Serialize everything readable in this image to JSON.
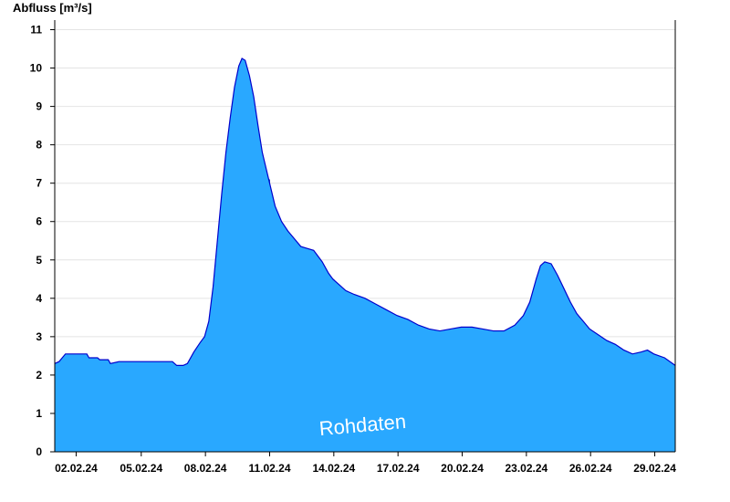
{
  "chart_data": {
    "type": "area",
    "title": "",
    "ylabel": "Abfluss [m³/s]",
    "xlabel": "",
    "watermark": "Rohdaten",
    "ylim": [
      0,
      11.25
    ],
    "xlim": [
      1,
      30
    ],
    "yticks": [
      0,
      1,
      2,
      3,
      4,
      5,
      6,
      7,
      8,
      9,
      10,
      11
    ],
    "xticks": [
      {
        "x": 2,
        "label": "02.02.24"
      },
      {
        "x": 5,
        "label": "05.02.24"
      },
      {
        "x": 8,
        "label": "08.02.24"
      },
      {
        "x": 11,
        "label": "11.02.24"
      },
      {
        "x": 14,
        "label": "14.02.24"
      },
      {
        "x": 17,
        "label": "17.02.24"
      },
      {
        "x": 20,
        "label": "20.02.24"
      },
      {
        "x": 23,
        "label": "23.02.24"
      },
      {
        "x": 26,
        "label": "26.02.24"
      },
      {
        "x": 29,
        "label": "29.02.24"
      }
    ],
    "grid": true,
    "colors": {
      "fill": "#29a8ff",
      "line": "#0000cc",
      "grid": "#e4e4e4",
      "date_line": "#1b5fa8"
    },
    "series": [
      {
        "x": [
          1.0,
          1.2,
          1.35,
          1.5,
          2.0,
          2.5,
          2.6,
          3.0,
          3.1,
          3.5,
          3.6,
          4.0,
          4.5,
          4.7,
          5.0,
          5.5,
          6.0,
          6.5,
          6.7,
          7.0,
          7.2,
          7.5,
          7.8,
          8.0,
          8.2,
          8.4,
          8.6,
          8.8,
          9.0,
          9.2,
          9.4,
          9.6,
          9.75,
          9.9,
          10.0,
          10.1,
          10.3,
          10.5,
          10.7,
          11.0,
          11.3,
          11.6,
          11.9,
          12.2,
          12.5,
          12.8,
          13.1,
          13.5,
          13.8,
          14.0,
          14.3,
          14.6,
          15.0,
          15.5,
          16.0,
          16.5,
          17.0,
          17.5,
          18.0,
          18.5,
          19.0,
          19.5,
          20.0,
          20.5,
          21.0,
          21.5,
          21.6,
          22.0,
          22.5,
          22.9,
          23.2,
          23.5,
          23.7,
          23.9,
          24.2,
          24.5,
          24.8,
          25.1,
          25.4,
          25.7,
          26.0,
          26.4,
          26.8,
          27.2,
          27.6,
          28.0,
          28.4,
          28.7,
          29.0,
          29.5,
          30.0
        ],
        "y": [
          2.3,
          2.35,
          2.45,
          2.55,
          2.55,
          2.55,
          2.45,
          2.45,
          2.4,
          2.4,
          2.3,
          2.35,
          2.35,
          2.35,
          2.35,
          2.35,
          2.35,
          2.35,
          2.25,
          2.25,
          2.3,
          2.6,
          2.85,
          3.0,
          3.4,
          4.3,
          5.5,
          6.7,
          7.8,
          8.7,
          9.5,
          10.05,
          10.25,
          10.2,
          10.0,
          9.8,
          9.25,
          8.5,
          7.8,
          7.1,
          6.4,
          6.0,
          5.75,
          5.55,
          5.35,
          5.3,
          5.25,
          4.95,
          4.65,
          4.5,
          4.35,
          4.2,
          4.1,
          4.0,
          3.85,
          3.7,
          3.55,
          3.45,
          3.3,
          3.2,
          3.15,
          3.2,
          3.25,
          3.25,
          3.2,
          3.15,
          3.15,
          3.15,
          3.3,
          3.55,
          3.9,
          4.5,
          4.85,
          4.95,
          4.9,
          4.6,
          4.25,
          3.9,
          3.6,
          3.4,
          3.2,
          3.05,
          2.9,
          2.8,
          2.65,
          2.55,
          2.6,
          2.65,
          2.55,
          2.45,
          2.25
        ]
      }
    ]
  }
}
